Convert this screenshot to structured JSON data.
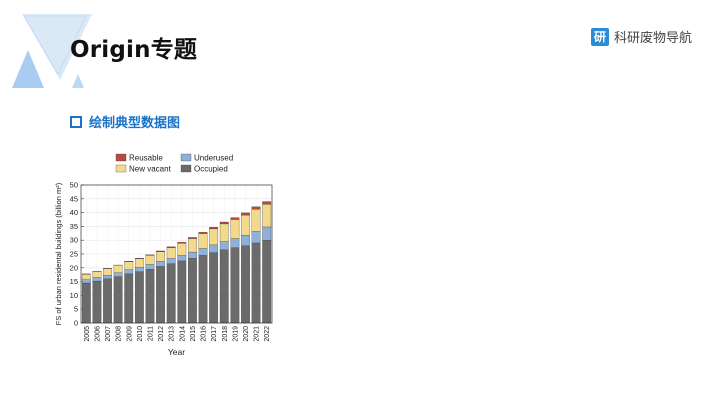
{
  "slide": {
    "title": "Origin专题",
    "brand_icon_char": "研",
    "brand_text": "科研废物导航",
    "section_label": "绘制典型数据图",
    "accent_color": "#1a73c7"
  },
  "chart_data": {
    "type": "bar",
    "stacked": true,
    "categories": [
      "2005",
      "2006",
      "2007",
      "2008",
      "2009",
      "2010",
      "2011",
      "2012",
      "2013",
      "2014",
      "2015",
      "2016",
      "2017",
      "2018",
      "2019",
      "2020",
      "2021",
      "2022"
    ],
    "series": [
      {
        "name": "Occupied",
        "color": "#6b6b6b",
        "values": [
          14.5,
          15.2,
          16.0,
          16.8,
          17.8,
          18.6,
          19.5,
          20.5,
          21.5,
          22.5,
          23.5,
          24.5,
          25.5,
          26.5,
          27.3,
          28.0,
          29.0,
          30.0
        ]
      },
      {
        "name": "Underused",
        "color": "#8fb0d8",
        "values": [
          1.2,
          1.3,
          1.3,
          1.4,
          1.5,
          1.6,
          1.7,
          1.8,
          1.9,
          2.0,
          2.2,
          2.5,
          2.8,
          3.0,
          3.3,
          3.8,
          4.2,
          4.8
        ]
      },
      {
        "name": "New vacant",
        "color": "#f3d98b",
        "values": [
          2.0,
          2.2,
          2.4,
          2.7,
          2.9,
          3.1,
          3.3,
          3.5,
          3.9,
          4.4,
          4.9,
          5.4,
          5.8,
          6.4,
          6.9,
          7.3,
          8.0,
          8.2
        ]
      },
      {
        "name": "Reusable",
        "color": "#b84a3e",
        "values": [
          0.1,
          0.1,
          0.1,
          0.1,
          0.2,
          0.2,
          0.2,
          0.3,
          0.3,
          0.4,
          0.4,
          0.5,
          0.6,
          0.7,
          0.7,
          0.8,
          0.9,
          1.0
        ]
      }
    ],
    "xlabel": "Year",
    "ylabel": "FS of urban residental buildings (billion m²)",
    "yticks": [
      0,
      5,
      10,
      15,
      20,
      25,
      30,
      35,
      40,
      45,
      50
    ],
    "ylim": [
      0,
      50
    ],
    "grid": true,
    "legend_position": "top",
    "legend_order": [
      "Reusable",
      "Underused",
      "New vacant",
      "Occupied"
    ]
  }
}
